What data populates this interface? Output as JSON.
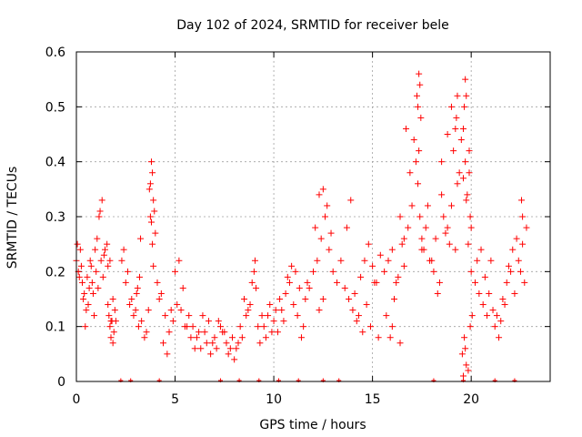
{
  "chart_data": {
    "type": "scatter",
    "title": "Day 102 of 2024, SRMTID for receiver bele",
    "xlabel": "GPS time / hours",
    "ylabel": "SRMTID / TECUs",
    "xlim": [
      0,
      24
    ],
    "ylim": [
      0,
      0.6
    ],
    "xticks": [
      0,
      5,
      10,
      15,
      20
    ],
    "yticks": [
      0,
      0.1,
      0.2,
      0.3,
      0.4,
      0.5,
      0.6
    ],
    "xtick_labels": [
      "0",
      "5",
      "10",
      "15",
      "20"
    ],
    "ytick_labels": [
      "0",
      "0.1",
      "0.2",
      "0.3",
      "0.4",
      "0.5",
      "0.6"
    ],
    "grid": true,
    "marker": "+",
    "color": "#ff0000",
    "zero_markers_x": [
      2.25,
      2.75,
      4.2,
      7.3,
      8.25,
      9.25,
      10.25,
      11.25,
      12.5,
      13.3,
      18.1,
      19.6,
      21.2,
      22.2
    ],
    "series": [
      {
        "name": "SRMTID",
        "x": [
          0.0,
          0.1,
          0.2,
          0.3,
          0.4,
          0.5,
          0.55,
          0.65,
          0.75,
          0.85,
          0.95,
          1.05,
          1.15,
          1.25,
          1.35,
          1.45,
          1.6,
          1.75,
          1.85,
          0.05,
          0.15,
          0.25,
          0.35,
          0.45,
          0.6,
          0.7,
          0.8,
          0.9,
          1.0,
          1.1,
          1.2,
          1.3,
          1.4,
          1.55,
          1.7,
          1.6,
          1.65,
          1.7,
          1.75,
          1.8,
          1.85,
          1.9,
          1.95,
          2.0,
          2.3,
          2.5,
          2.7,
          2.9,
          3.05,
          3.15,
          3.25,
          2.4,
          2.6,
          2.8,
          3.0,
          3.1,
          3.2,
          3.3,
          3.45,
          3.55,
          3.65,
          3.75,
          3.8,
          3.85,
          3.9,
          3.95,
          4.0,
          3.7,
          3.75,
          3.8,
          3.85,
          3.9,
          4.1,
          4.3,
          4.5,
          4.7,
          4.9,
          5.1,
          5.3,
          5.5,
          4.2,
          4.4,
          4.6,
          4.8,
          5.0,
          5.2,
          5.4,
          5.6,
          5.8,
          6.0,
          6.2,
          6.4,
          6.6,
          6.8,
          7.0,
          7.2,
          7.4,
          7.6,
          7.8,
          8.0,
          8.2,
          5.7,
          5.9,
          6.1,
          6.3,
          6.5,
          6.7,
          6.9,
          7.1,
          7.3,
          7.5,
          7.7,
          7.9,
          8.1,
          8.3,
          8.5,
          8.7,
          8.9,
          9.0,
          9.1,
          8.4,
          8.6,
          8.8,
          9.05,
          9.2,
          9.4,
          9.6,
          9.8,
          10.0,
          10.2,
          10.4,
          10.6,
          10.8,
          11.0,
          11.2,
          11.4,
          11.6,
          11.8,
          9.3,
          9.5,
          9.7,
          9.9,
          10.1,
          10.3,
          10.5,
          10.7,
          10.9,
          11.1,
          11.3,
          11.5,
          11.7,
          12.0,
          12.2,
          12.4,
          12.6,
          12.8,
          13.0,
          13.2,
          13.4,
          12.1,
          12.3,
          12.5,
          12.7,
          12.9,
          12.3,
          12.5,
          13.6,
          13.8,
          14.0,
          14.2,
          14.4,
          14.6,
          14.8,
          15.0,
          15.2,
          15.4,
          13.7,
          13.9,
          14.1,
          14.3,
          14.5,
          14.7,
          14.9,
          15.1,
          15.3,
          15.6,
          15.8,
          16.0,
          16.2,
          16.4,
          16.6,
          16.8,
          17.0,
          15.7,
          15.9,
          16.1,
          16.3,
          16.5,
          16.7,
          16.9,
          16.0,
          16.4,
          16.6,
          17.1,
          17.2,
          17.3,
          17.4,
          17.5,
          17.6,
          17.7,
          17.8,
          17.9,
          17.25,
          17.35,
          17.45,
          17.3,
          17.4,
          17.35,
          17.5,
          18.0,
          18.2,
          18.4,
          18.6,
          18.8,
          19.0,
          19.2,
          19.4,
          18.1,
          18.3,
          18.5,
          18.7,
          18.9,
          19.1,
          19.3,
          18.5,
          18.8,
          19.0,
          19.2,
          19.3,
          19.25,
          19.6,
          19.75,
          19.5,
          19.6,
          19.7,
          19.8,
          19.9,
          20.0,
          19.55,
          19.65,
          19.75,
          19.85,
          19.95,
          20.05,
          19.6,
          19.7,
          19.65,
          19.75,
          19.7,
          19.9,
          19.95,
          19.85,
          20.0,
          20.2,
          20.4,
          20.6,
          20.8,
          21.0,
          21.2,
          21.4,
          21.6,
          21.8,
          22.0,
          20.3,
          20.5,
          20.7,
          20.9,
          21.1,
          21.3,
          21.5,
          21.7,
          21.9,
          22.1,
          22.3,
          22.5,
          22.7,
          22.2,
          22.4,
          22.6,
          22.8,
          22.55,
          22.6
        ],
        "y": [
          0.22,
          0.2,
          0.24,
          0.18,
          0.16,
          0.13,
          0.19,
          0.17,
          0.21,
          0.16,
          0.24,
          0.26,
          0.3,
          0.22,
          0.19,
          0.24,
          0.21,
          0.11,
          0.15,
          0.25,
          0.19,
          0.21,
          0.15,
          0.1,
          0.14,
          0.22,
          0.18,
          0.12,
          0.2,
          0.17,
          0.31,
          0.33,
          0.23,
          0.25,
          0.22,
          0.14,
          0.12,
          0.1,
          0.08,
          0.11,
          0.07,
          0.09,
          0.13,
          0.11,
          0.22,
          0.18,
          0.14,
          0.12,
          0.16,
          0.1,
          0.26,
          0.24,
          0.2,
          0.15,
          0.13,
          0.17,
          0.19,
          0.11,
          0.08,
          0.09,
          0.13,
          0.36,
          0.4,
          0.38,
          0.33,
          0.31,
          0.27,
          0.35,
          0.3,
          0.29,
          0.25,
          0.21,
          0.18,
          0.16,
          0.12,
          0.09,
          0.11,
          0.14,
          0.13,
          0.1,
          0.15,
          0.07,
          0.05,
          0.13,
          0.2,
          0.22,
          0.17,
          0.1,
          0.08,
          0.06,
          0.09,
          0.12,
          0.07,
          0.05,
          0.08,
          0.11,
          0.09,
          0.07,
          0.06,
          0.04,
          0.07,
          0.12,
          0.1,
          0.08,
          0.06,
          0.09,
          0.11,
          0.07,
          0.06,
          0.1,
          0.09,
          0.05,
          0.08,
          0.06,
          0.1,
          0.15,
          0.13,
          0.18,
          0.2,
          0.17,
          0.08,
          0.12,
          0.14,
          0.22,
          0.1,
          0.12,
          0.08,
          0.14,
          0.11,
          0.09,
          0.13,
          0.16,
          0.18,
          0.14,
          0.12,
          0.08,
          0.15,
          0.17,
          0.07,
          0.1,
          0.12,
          0.09,
          0.13,
          0.15,
          0.11,
          0.19,
          0.21,
          0.2,
          0.17,
          0.1,
          0.18,
          0.2,
          0.22,
          0.26,
          0.3,
          0.24,
          0.2,
          0.18,
          0.22,
          0.28,
          0.34,
          0.35,
          0.32,
          0.27,
          0.13,
          0.15,
          0.17,
          0.15,
          0.13,
          0.11,
          0.19,
          0.22,
          0.25,
          0.21,
          0.18,
          0.23,
          0.28,
          0.33,
          0.16,
          0.12,
          0.09,
          0.14,
          0.1,
          0.18,
          0.08,
          0.2,
          0.22,
          0.24,
          0.18,
          0.3,
          0.26,
          0.28,
          0.32,
          0.12,
          0.08,
          0.15,
          0.19,
          0.25,
          0.46,
          0.38,
          0.1,
          0.07,
          0.21,
          0.44,
          0.4,
          0.36,
          0.3,
          0.26,
          0.24,
          0.28,
          0.32,
          0.22,
          0.52,
          0.56,
          0.48,
          0.5,
          0.54,
          0.42,
          0.24,
          0.22,
          0.26,
          0.18,
          0.3,
          0.28,
          0.32,
          0.24,
          0.38,
          0.2,
          0.16,
          0.34,
          0.27,
          0.25,
          0.42,
          0.36,
          0.4,
          0.45,
          0.5,
          0.46,
          0.52,
          0.48,
          0.37,
          0.33,
          0.44,
          0.46,
          0.4,
          0.34,
          0.38,
          0.28,
          0.05,
          0.08,
          0.03,
          0.02,
          0.1,
          0.12,
          0.01,
          0.06,
          0.5,
          0.52,
          0.55,
          0.42,
          0.3,
          0.25,
          0.2,
          0.18,
          0.16,
          0.14,
          0.12,
          0.22,
          0.1,
          0.08,
          0.15,
          0.18,
          0.2,
          0.22,
          0.24,
          0.19,
          0.16,
          0.13,
          0.12,
          0.11,
          0.14,
          0.21,
          0.24,
          0.26,
          0.2,
          0.18,
          0.16,
          0.22,
          0.25,
          0.28,
          0.33,
          0.3
        ]
      }
    ]
  }
}
